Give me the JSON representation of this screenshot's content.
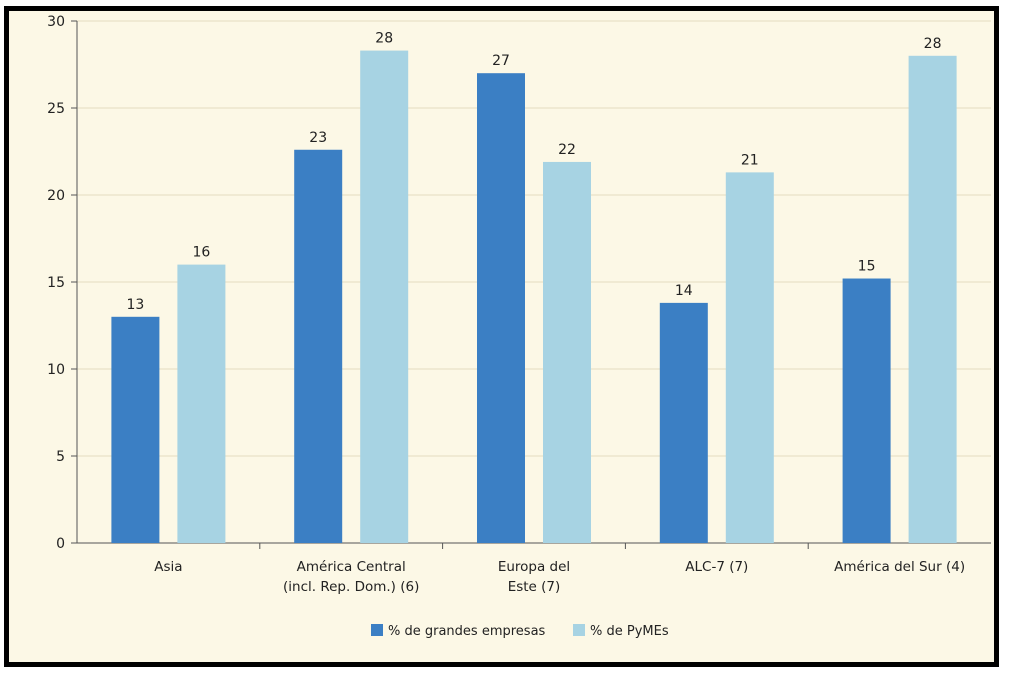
{
  "chart_data": {
    "type": "bar",
    "categories": [
      [
        "Asia"
      ],
      [
        "América Central",
        "(incl. Rep. Dom.) (6)"
      ],
      [
        "Europa del",
        "Este (7)"
      ],
      [
        "ALC-7 (7)"
      ],
      [
        "América del Sur (4)"
      ]
    ],
    "series": [
      {
        "name": "% de grandes empresas",
        "color": "#3b7fc4",
        "values": [
          13,
          22.6,
          27,
          13.8,
          15.2
        ],
        "labels": [
          "13",
          "23",
          "27",
          "14",
          "15"
        ]
      },
      {
        "name": "% de PyMEs",
        "color": "#a7d3e3",
        "values": [
          16,
          28.3,
          21.9,
          21.3,
          28
        ],
        "labels": [
          "16",
          "28",
          "22",
          "21",
          "28"
        ]
      }
    ],
    "ylim": [
      0,
      30
    ],
    "yticks": [
      0,
      5,
      10,
      15,
      20,
      25,
      30
    ],
    "grid": true,
    "legend_position": "bottom-center",
    "title": "",
    "xlabel": "",
    "ylabel": ""
  },
  "colors": {
    "background": "#fcf8e6",
    "grid": "#e3dcc0",
    "axis": "#555555",
    "frame": "#000000"
  }
}
